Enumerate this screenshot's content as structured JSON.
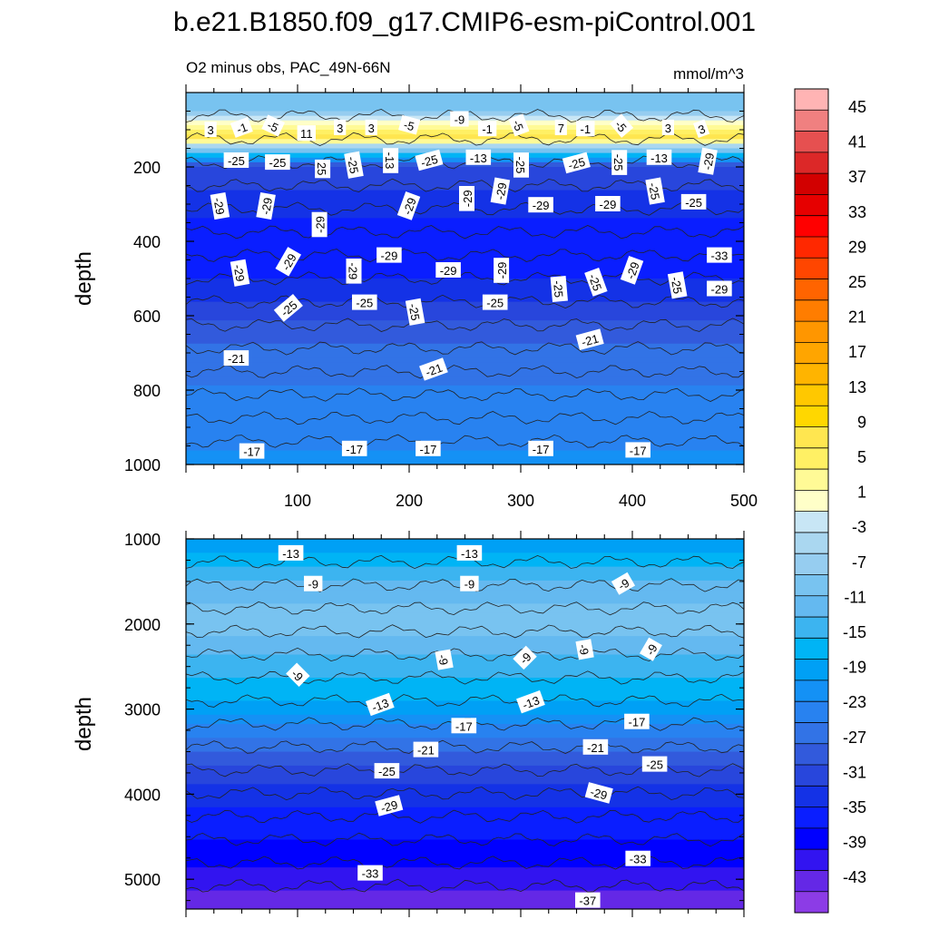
{
  "title": "b.e21.B1850.f09_g17.CMIP6-esm-piControl.001",
  "subtitle_left": "O2 minus obs, PAC_49N-66N",
  "subtitle_right": "mmol/m^3",
  "chart_data": [
    {
      "type": "contour",
      "panel": "upper",
      "xlim": [
        0,
        500
      ],
      "ylim": [
        1000,
        0
      ],
      "x_ticks": [
        "100",
        "200",
        "300",
        "400",
        "500"
      ],
      "y_ticks": [
        "200",
        "400",
        "600",
        "800",
        "1000"
      ],
      "ylabel": "depth",
      "depth_profile": [
        {
          "depth": 40,
          "value": -5
        },
        {
          "depth": 120,
          "value": 11
        },
        {
          "depth": 200,
          "value": -25
        },
        {
          "depth": 350,
          "value": -29
        },
        {
          "depth": 500,
          "value": -29
        },
        {
          "depth": 600,
          "value": -25
        },
        {
          "depth": 700,
          "value": -21
        },
        {
          "depth": 850,
          "value": -19
        },
        {
          "depth": 1000,
          "value": -17
        }
      ],
      "contour_labels": [
        {
          "text": "3",
          "x": 22,
          "depth": 100,
          "rot": 0
        },
        {
          "text": "-1",
          "x": 50,
          "depth": 95,
          "rot": -20
        },
        {
          "text": "-5",
          "x": 78,
          "depth": 90,
          "rot": 25
        },
        {
          "text": "11",
          "x": 108,
          "depth": 110,
          "rot": 0
        },
        {
          "text": "3",
          "x": 138,
          "depth": 95,
          "rot": 0
        },
        {
          "text": "3",
          "x": 166,
          "depth": 95,
          "rot": 0
        },
        {
          "text": "-5",
          "x": 200,
          "depth": 88,
          "rot": 15
        },
        {
          "text": "-9",
          "x": 245,
          "depth": 72,
          "rot": 0
        },
        {
          "text": "-1",
          "x": 270,
          "depth": 98,
          "rot": 0
        },
        {
          "text": "-5",
          "x": 298,
          "depth": 88,
          "rot": 70
        },
        {
          "text": "7",
          "x": 336,
          "depth": 95,
          "rot": 0
        },
        {
          "text": "-1",
          "x": 358,
          "depth": 98,
          "rot": 0
        },
        {
          "text": "-5",
          "x": 390,
          "depth": 90,
          "rot": 50
        },
        {
          "text": "3",
          "x": 432,
          "depth": 95,
          "rot": 0
        },
        {
          "text": "3",
          "x": 462,
          "depth": 98,
          "rot": -20
        },
        {
          "text": "-25",
          "x": 45,
          "depth": 183,
          "rot": 0
        },
        {
          "text": "-25",
          "x": 82,
          "depth": 188,
          "rot": 0
        },
        {
          "text": "25",
          "x": 122,
          "depth": 205,
          "rot": 90
        },
        {
          "text": "-25",
          "x": 150,
          "depth": 195,
          "rot": 80
        },
        {
          "text": "-13",
          "x": 183,
          "depth": 183,
          "rot": 90
        },
        {
          "text": "-25",
          "x": 218,
          "depth": 183,
          "rot": -15
        },
        {
          "text": "-13",
          "x": 262,
          "depth": 175,
          "rot": 0
        },
        {
          "text": "-25",
          "x": 300,
          "depth": 195,
          "rot": 90
        },
        {
          "text": "-25",
          "x": 350,
          "depth": 190,
          "rot": -15
        },
        {
          "text": "-25",
          "x": 388,
          "depth": 188,
          "rot": 90
        },
        {
          "text": "-13",
          "x": 424,
          "depth": 175,
          "rot": 0
        },
        {
          "text": "-29",
          "x": 468,
          "depth": 185,
          "rot": -80
        },
        {
          "text": "-29",
          "x": 30,
          "depth": 305,
          "rot": 80
        },
        {
          "text": "-29",
          "x": 72,
          "depth": 305,
          "rot": -80
        },
        {
          "text": "-29",
          "x": 120,
          "depth": 355,
          "rot": -90
        },
        {
          "text": "-29",
          "x": 200,
          "depth": 305,
          "rot": -70
        },
        {
          "text": "-29",
          "x": 252,
          "depth": 285,
          "rot": -90
        },
        {
          "text": "-29",
          "x": 282,
          "depth": 265,
          "rot": -80
        },
        {
          "text": "-29",
          "x": 318,
          "depth": 303,
          "rot": 0
        },
        {
          "text": "-29",
          "x": 378,
          "depth": 300,
          "rot": 0
        },
        {
          "text": "-25",
          "x": 420,
          "depth": 265,
          "rot": 80
        },
        {
          "text": "-25",
          "x": 455,
          "depth": 295,
          "rot": 0
        },
        {
          "text": "-29",
          "x": 48,
          "depth": 485,
          "rot": 80
        },
        {
          "text": "-29",
          "x": 92,
          "depth": 455,
          "rot": -60
        },
        {
          "text": "-29",
          "x": 150,
          "depth": 480,
          "rot": 90
        },
        {
          "text": "-29",
          "x": 182,
          "depth": 438,
          "rot": 0
        },
        {
          "text": "-29",
          "x": 235,
          "depth": 478,
          "rot": 0
        },
        {
          "text": "-29",
          "x": 283,
          "depth": 478,
          "rot": -90
        },
        {
          "text": "-33",
          "x": 478,
          "depth": 438,
          "rot": 0
        },
        {
          "text": "-29",
          "x": 400,
          "depth": 478,
          "rot": -70
        },
        {
          "text": "-25",
          "x": 92,
          "depth": 580,
          "rot": -40
        },
        {
          "text": "-25",
          "x": 160,
          "depth": 565,
          "rot": 0
        },
        {
          "text": "-25",
          "x": 205,
          "depth": 590,
          "rot": 80
        },
        {
          "text": "-25",
          "x": 277,
          "depth": 565,
          "rot": 0
        },
        {
          "text": "-25",
          "x": 334,
          "depth": 528,
          "rot": 85
        },
        {
          "text": "-25",
          "x": 367,
          "depth": 510,
          "rot": 70
        },
        {
          "text": "-25",
          "x": 440,
          "depth": 518,
          "rot": 80
        },
        {
          "text": "-29",
          "x": 478,
          "depth": 528,
          "rot": 0
        },
        {
          "text": "-21",
          "x": 45,
          "depth": 715,
          "rot": 0
        },
        {
          "text": "-21",
          "x": 222,
          "depth": 745,
          "rot": -20
        },
        {
          "text": "-21",
          "x": 362,
          "depth": 665,
          "rot": -15
        },
        {
          "text": "-17",
          "x": 59,
          "depth": 965,
          "rot": 0
        },
        {
          "text": "-17",
          "x": 151,
          "depth": 958,
          "rot": 0
        },
        {
          "text": "-17",
          "x": 217,
          "depth": 958,
          "rot": 0
        },
        {
          "text": "-17",
          "x": 318,
          "depth": 958,
          "rot": 0
        },
        {
          "text": "-17",
          "x": 405,
          "depth": 962,
          "rot": 0
        }
      ]
    },
    {
      "type": "contour",
      "panel": "lower",
      "xlim": [
        0,
        500
      ],
      "ylim": [
        5350,
        1000
      ],
      "y_ticks": [
        "1000",
        "2000",
        "3000",
        "4000",
        "5000"
      ],
      "ylabel": "depth",
      "depth_profile": [
        {
          "depth": 1000,
          "value": -15
        },
        {
          "depth": 1300,
          "value": -11
        },
        {
          "depth": 1600,
          "value": -7
        },
        {
          "depth": 2000,
          "value": -5
        },
        {
          "depth": 2400,
          "value": -9
        },
        {
          "depth": 2900,
          "value": -13
        },
        {
          "depth": 3300,
          "value": -19
        },
        {
          "depth": 3700,
          "value": -25
        },
        {
          "depth": 4200,
          "value": -29
        },
        {
          "depth": 4800,
          "value": -33
        },
        {
          "depth": 5300,
          "value": -37
        }
      ],
      "contour_labels": [
        {
          "text": "-13",
          "x": 94,
          "depth": 1170,
          "rot": 0
        },
        {
          "text": "-13",
          "x": 254,
          "depth": 1170,
          "rot": 0
        },
        {
          "text": "-9",
          "x": 114,
          "depth": 1530,
          "rot": 0
        },
        {
          "text": "-9",
          "x": 254,
          "depth": 1530,
          "rot": 0
        },
        {
          "text": "-9",
          "x": 392,
          "depth": 1530,
          "rot": -30
        },
        {
          "text": "-9",
          "x": 100,
          "depth": 2600,
          "rot": 45
        },
        {
          "text": "-9",
          "x": 231,
          "depth": 2420,
          "rot": 80
        },
        {
          "text": "-9",
          "x": 304,
          "depth": 2400,
          "rot": -45
        },
        {
          "text": "-9",
          "x": 357,
          "depth": 2300,
          "rot": 80
        },
        {
          "text": "-9",
          "x": 417,
          "depth": 2300,
          "rot": -60
        },
        {
          "text": "-13",
          "x": 174,
          "depth": 2950,
          "rot": -20
        },
        {
          "text": "-13",
          "x": 309,
          "depth": 2920,
          "rot": -20
        },
        {
          "text": "-17",
          "x": 249,
          "depth": 3200,
          "rot": 0
        },
        {
          "text": "-17",
          "x": 404,
          "depth": 3150,
          "rot": 0
        },
        {
          "text": "-21",
          "x": 215,
          "depth": 3480,
          "rot": 0
        },
        {
          "text": "-21",
          "x": 367,
          "depth": 3450,
          "rot": 0
        },
        {
          "text": "-25",
          "x": 180,
          "depth": 3730,
          "rot": 0
        },
        {
          "text": "-25",
          "x": 420,
          "depth": 3650,
          "rot": 0
        },
        {
          "text": "-29",
          "x": 182,
          "depth": 4140,
          "rot": -15
        },
        {
          "text": "-29",
          "x": 370,
          "depth": 3990,
          "rot": 15
        },
        {
          "text": "-33",
          "x": 165,
          "depth": 4930,
          "rot": 0
        },
        {
          "text": "-33",
          "x": 405,
          "depth": 4760,
          "rot": 0
        },
        {
          "text": "-37",
          "x": 360,
          "depth": 5250,
          "rot": 0
        }
      ]
    }
  ],
  "colorbar": {
    "labels": [
      "45",
      "41",
      "37",
      "33",
      "29",
      "25",
      "21",
      "17",
      "13",
      "9",
      "5",
      "1",
      "-3",
      "-7",
      "-11",
      "-15",
      "-19",
      "-23",
      "-27",
      "-31",
      "-35",
      "-39",
      "-43"
    ],
    "colors": [
      "#ffb4b4",
      "#f08080",
      "#e65050",
      "#dc2828",
      "#d20000",
      "#e60000",
      "#ff0000",
      "#ff2800",
      "#ff4600",
      "#ff6400",
      "#ff7d00",
      "#ff9600",
      "#ffa500",
      "#ffb400",
      "#ffc800",
      "#ffd700",
      "#ffe650",
      "#fff064",
      "#fffa96",
      "#ffffc8",
      "#c8e6f5",
      "#aad7f0",
      "#96cdf0",
      "#78c3f0",
      "#64b9f0",
      "#3cb4f0",
      "#00b4f5",
      "#00a0f5",
      "#1491f5",
      "#2882f0",
      "#3273e6",
      "#325adc",
      "#2846dc",
      "#1432e6",
      "#0a1eff",
      "#0000ff",
      "#3214f0",
      "#6428e6",
      "#8c3ce6"
    ]
  }
}
